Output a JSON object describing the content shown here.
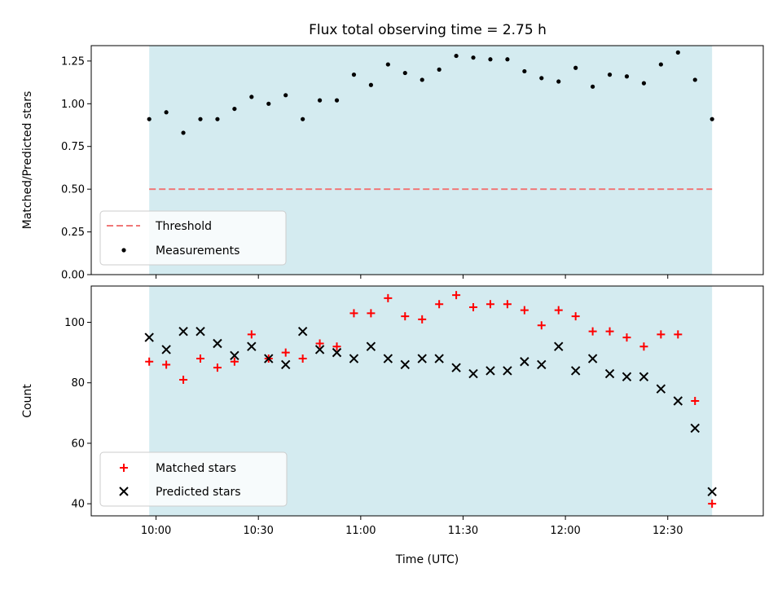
{
  "title": "Flux total observing time = 2.75 h",
  "colors": {
    "band": "#d4ebf0",
    "threshold": "#f07878",
    "matched": "#ff0000",
    "predicted": "#000000",
    "measurement": "#000000"
  },
  "chart_data": [
    {
      "type": "scatter",
      "ylabel": "Matched/Predicted stars",
      "ylim": [
        0.0,
        1.34
      ],
      "yticks": [
        "0.00",
        "0.25",
        "0.50",
        "0.75",
        "1.00",
        "1.25"
      ],
      "threshold": {
        "name": "Threshold",
        "value": 0.5
      },
      "legend": [
        "Threshold",
        "Measurements"
      ],
      "legend_position": "lower-left",
      "series": [
        {
          "name": "Measurements",
          "x": [
            "09:58",
            "10:03",
            "10:08",
            "10:13",
            "10:18",
            "10:23",
            "10:28",
            "10:33",
            "10:38",
            "10:43",
            "10:48",
            "10:53",
            "10:58",
            "11:03",
            "11:08",
            "11:13",
            "11:18",
            "11:23",
            "11:28",
            "11:33",
            "11:38",
            "11:43",
            "11:48",
            "11:53",
            "11:58",
            "12:03",
            "12:08",
            "12:13",
            "12:18",
            "12:23",
            "12:28",
            "12:33",
            "12:38",
            "12:43"
          ],
          "values": [
            0.91,
            0.95,
            0.83,
            0.91,
            0.91,
            0.97,
            1.04,
            1.0,
            1.05,
            0.91,
            1.02,
            1.02,
            1.17,
            1.11,
            1.23,
            1.18,
            1.14,
            1.2,
            1.28,
            1.27,
            1.26,
            1.26,
            1.19,
            1.15,
            1.13,
            1.21,
            1.1,
            1.17,
            1.16,
            1.12,
            1.23,
            1.3,
            1.14,
            0.91
          ]
        }
      ]
    },
    {
      "type": "scatter",
      "xlabel": "Time (UTC)",
      "ylabel": "Count",
      "ylim": [
        36,
        112
      ],
      "yticks": [
        "40",
        "60",
        "80",
        "100"
      ],
      "xticks": [
        "10:00",
        "10:30",
        "11:00",
        "11:30",
        "12:00",
        "12:30"
      ],
      "legend": [
        "Matched stars",
        "Predicted stars"
      ],
      "legend_position": "lower-left",
      "series": [
        {
          "name": "Matched stars",
          "x": [
            "09:58",
            "10:03",
            "10:08",
            "10:13",
            "10:18",
            "10:23",
            "10:28",
            "10:33",
            "10:38",
            "10:43",
            "10:48",
            "10:53",
            "10:58",
            "11:03",
            "11:08",
            "11:13",
            "11:18",
            "11:23",
            "11:28",
            "11:33",
            "11:38",
            "11:43",
            "11:48",
            "11:53",
            "11:58",
            "12:03",
            "12:08",
            "12:13",
            "12:18",
            "12:23",
            "12:28",
            "12:33",
            "12:38",
            "12:43"
          ],
          "values": [
            87,
            86,
            81,
            88,
            85,
            87,
            96,
            88,
            90,
            88,
            93,
            92,
            103,
            103,
            108,
            102,
            101,
            106,
            109,
            105,
            106,
            106,
            104,
            99,
            104,
            102,
            97,
            97,
            95,
            92,
            96,
            96,
            74,
            40
          ]
        },
        {
          "name": "Predicted stars",
          "x": [
            "09:58",
            "10:03",
            "10:08",
            "10:13",
            "10:18",
            "10:23",
            "10:28",
            "10:33",
            "10:38",
            "10:43",
            "10:48",
            "10:53",
            "10:58",
            "11:03",
            "11:08",
            "11:13",
            "11:18",
            "11:23",
            "11:28",
            "11:33",
            "11:38",
            "11:43",
            "11:48",
            "11:53",
            "11:58",
            "12:03",
            "12:08",
            "12:13",
            "12:18",
            "12:23",
            "12:28",
            "12:33",
            "12:38",
            "12:43"
          ],
          "values": [
            95,
            91,
            97,
            97,
            93,
            89,
            92,
            88,
            86,
            97,
            91,
            90,
            88,
            92,
            88,
            86,
            88,
            88,
            85,
            83,
            84,
            84,
            87,
            86,
            92,
            84,
            88,
            83,
            82,
            82,
            78,
            74,
            65,
            44
          ]
        }
      ]
    }
  ]
}
